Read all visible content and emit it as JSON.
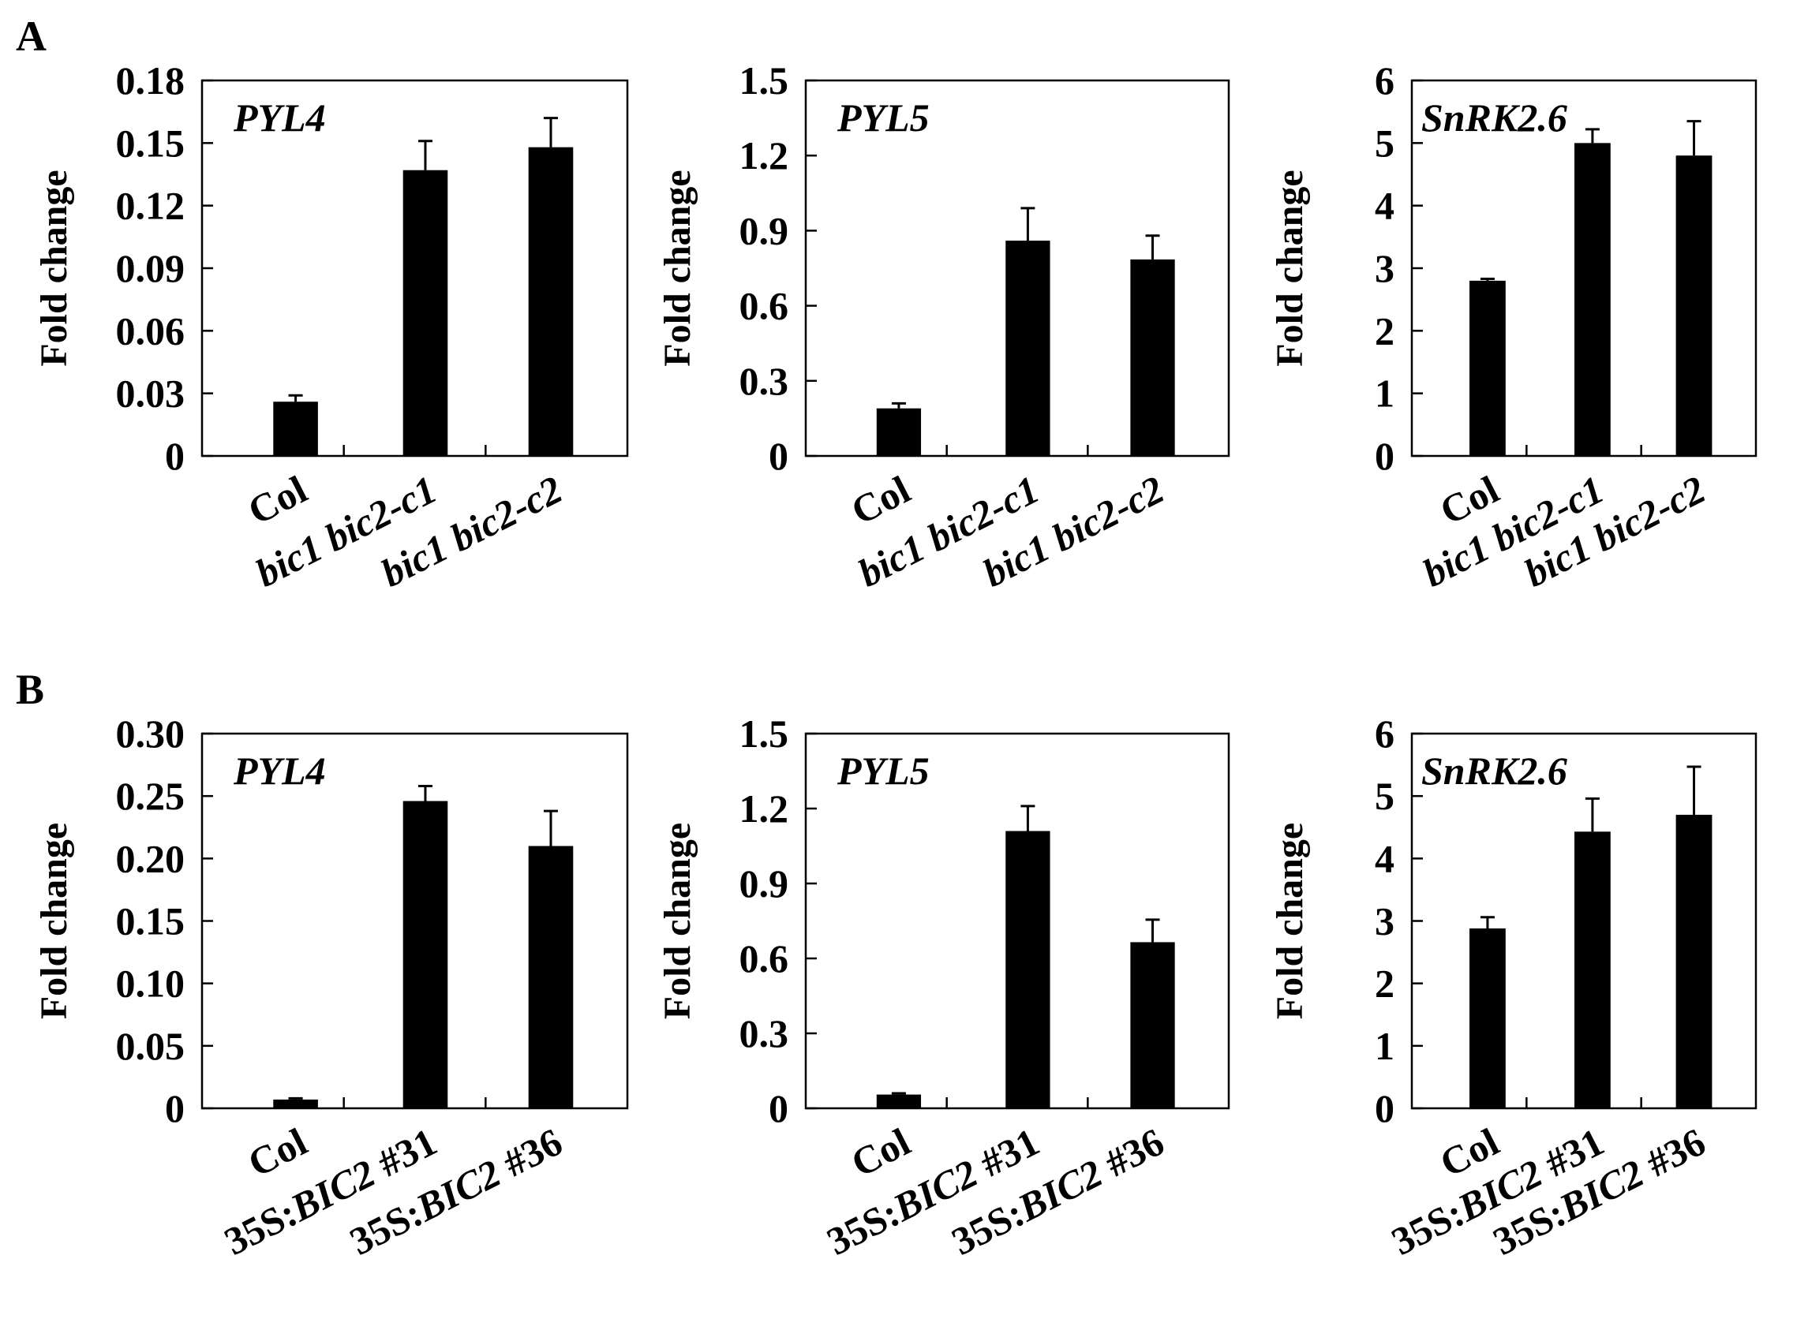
{
  "chart_data": [
    {
      "panel": "A",
      "type": "bar",
      "title": "PYL4",
      "ylabel": "Fold change",
      "categories": [
        [
          {
            "t": "Col",
            "i": false
          }
        ],
        [
          {
            "t": "bic1 bic2-c1",
            "i": true
          }
        ],
        [
          {
            "t": "bic1 bic2-c2",
            "i": true
          }
        ]
      ],
      "values": [
        0.026,
        0.137,
        0.148
      ],
      "errors": [
        0.003,
        0.014,
        0.014
      ],
      "ylim": [
        0,
        0.18
      ],
      "yticks": [
        0,
        0.03,
        0.06,
        0.09,
        0.12,
        0.15,
        0.18
      ],
      "ytick_labels": [
        "0",
        "0.03",
        "0.06",
        "0.09",
        "0.12",
        "0.15",
        "0.18"
      ]
    },
    {
      "panel": "",
      "type": "bar",
      "title": "PYL5",
      "ylabel": "Fold change",
      "categories": [
        [
          {
            "t": "Col",
            "i": false
          }
        ],
        [
          {
            "t": "bic1 bic2-c1",
            "i": true
          }
        ],
        [
          {
            "t": "bic1 bic2-c2",
            "i": true
          }
        ]
      ],
      "values": [
        0.19,
        0.86,
        0.785
      ],
      "errors": [
        0.02,
        0.13,
        0.095
      ],
      "ylim": [
        0,
        1.5
      ],
      "yticks": [
        0,
        0.3,
        0.6,
        0.9,
        1.2,
        1.5
      ],
      "ytick_labels": [
        "0",
        "0.3",
        "0.6",
        "0.9",
        "1.2",
        "1.5"
      ]
    },
    {
      "panel": "",
      "type": "bar",
      "title": "SnRK2.6",
      "ylabel": "Fold change",
      "categories": [
        [
          {
            "t": "Col",
            "i": false
          }
        ],
        [
          {
            "t": "bic1 bic2-c1",
            "i": true
          }
        ],
        [
          {
            "t": "bic1 bic2-c2",
            "i": true
          }
        ]
      ],
      "values": [
        2.8,
        5.0,
        4.8
      ],
      "errors": [
        0.03,
        0.22,
        0.55
      ],
      "ylim": [
        0,
        6
      ],
      "yticks": [
        0,
        1,
        2,
        3,
        4,
        5,
        6
      ],
      "ytick_labels": [
        "0",
        "1",
        "2",
        "3",
        "4",
        "5",
        "6"
      ]
    },
    {
      "panel": "B",
      "type": "bar",
      "title": "PYL4",
      "ylabel": "Fold change",
      "categories": [
        [
          {
            "t": "Col",
            "i": false
          }
        ],
        [
          {
            "t": "35S:",
            "i": false
          },
          {
            "t": "BIC2",
            "i": true
          },
          {
            "t": " #31",
            "i": false
          }
        ],
        [
          {
            "t": "35S:",
            "i": false
          },
          {
            "t": "BIC2",
            "i": true
          },
          {
            "t": " #36",
            "i": false
          }
        ]
      ],
      "values": [
        0.007,
        0.246,
        0.21
      ],
      "errors": [
        0.001,
        0.012,
        0.028
      ],
      "ylim": [
        0,
        0.3
      ],
      "yticks": [
        0,
        0.05,
        0.1,
        0.15,
        0.2,
        0.25,
        0.3
      ],
      "ytick_labels": [
        "0",
        "0.05",
        "0.10",
        "0.15",
        "0.20",
        "0.25",
        "0.30"
      ]
    },
    {
      "panel": "",
      "type": "bar",
      "title": "PYL5",
      "ylabel": "Fold change",
      "categories": [
        [
          {
            "t": "Col",
            "i": false
          }
        ],
        [
          {
            "t": "35S:",
            "i": false
          },
          {
            "t": "BIC2",
            "i": true
          },
          {
            "t": " #31",
            "i": false
          }
        ],
        [
          {
            "t": "35S:",
            "i": false
          },
          {
            "t": "BIC2",
            "i": true
          },
          {
            "t": " #36",
            "i": false
          }
        ]
      ],
      "values": [
        0.055,
        1.11,
        0.665
      ],
      "errors": [
        0.005,
        0.1,
        0.09
      ],
      "ylim": [
        0,
        1.5
      ],
      "yticks": [
        0,
        0.3,
        0.6,
        0.9,
        1.2,
        1.5
      ],
      "ytick_labels": [
        "0",
        "0.3",
        "0.6",
        "0.9",
        "1.2",
        "1.5"
      ]
    },
    {
      "panel": "",
      "type": "bar",
      "title": "SnRK2.6",
      "ylabel": "Fold change",
      "categories": [
        [
          {
            "t": "Col",
            "i": false
          }
        ],
        [
          {
            "t": "35S:",
            "i": false
          },
          {
            "t": "BIC2",
            "i": true
          },
          {
            "t": " #31",
            "i": false
          }
        ],
        [
          {
            "t": "35S:",
            "i": false
          },
          {
            "t": "BIC2",
            "i": true
          },
          {
            "t": " #36",
            "i": false
          }
        ]
      ],
      "values": [
        2.88,
        4.43,
        4.7
      ],
      "errors": [
        0.18,
        0.53,
        0.77
      ],
      "ylim": [
        0,
        6
      ],
      "yticks": [
        0,
        1,
        2,
        3,
        4,
        5,
        6
      ],
      "ytick_labels": [
        "0",
        "1",
        "2",
        "3",
        "4",
        "5",
        "6"
      ]
    }
  ]
}
